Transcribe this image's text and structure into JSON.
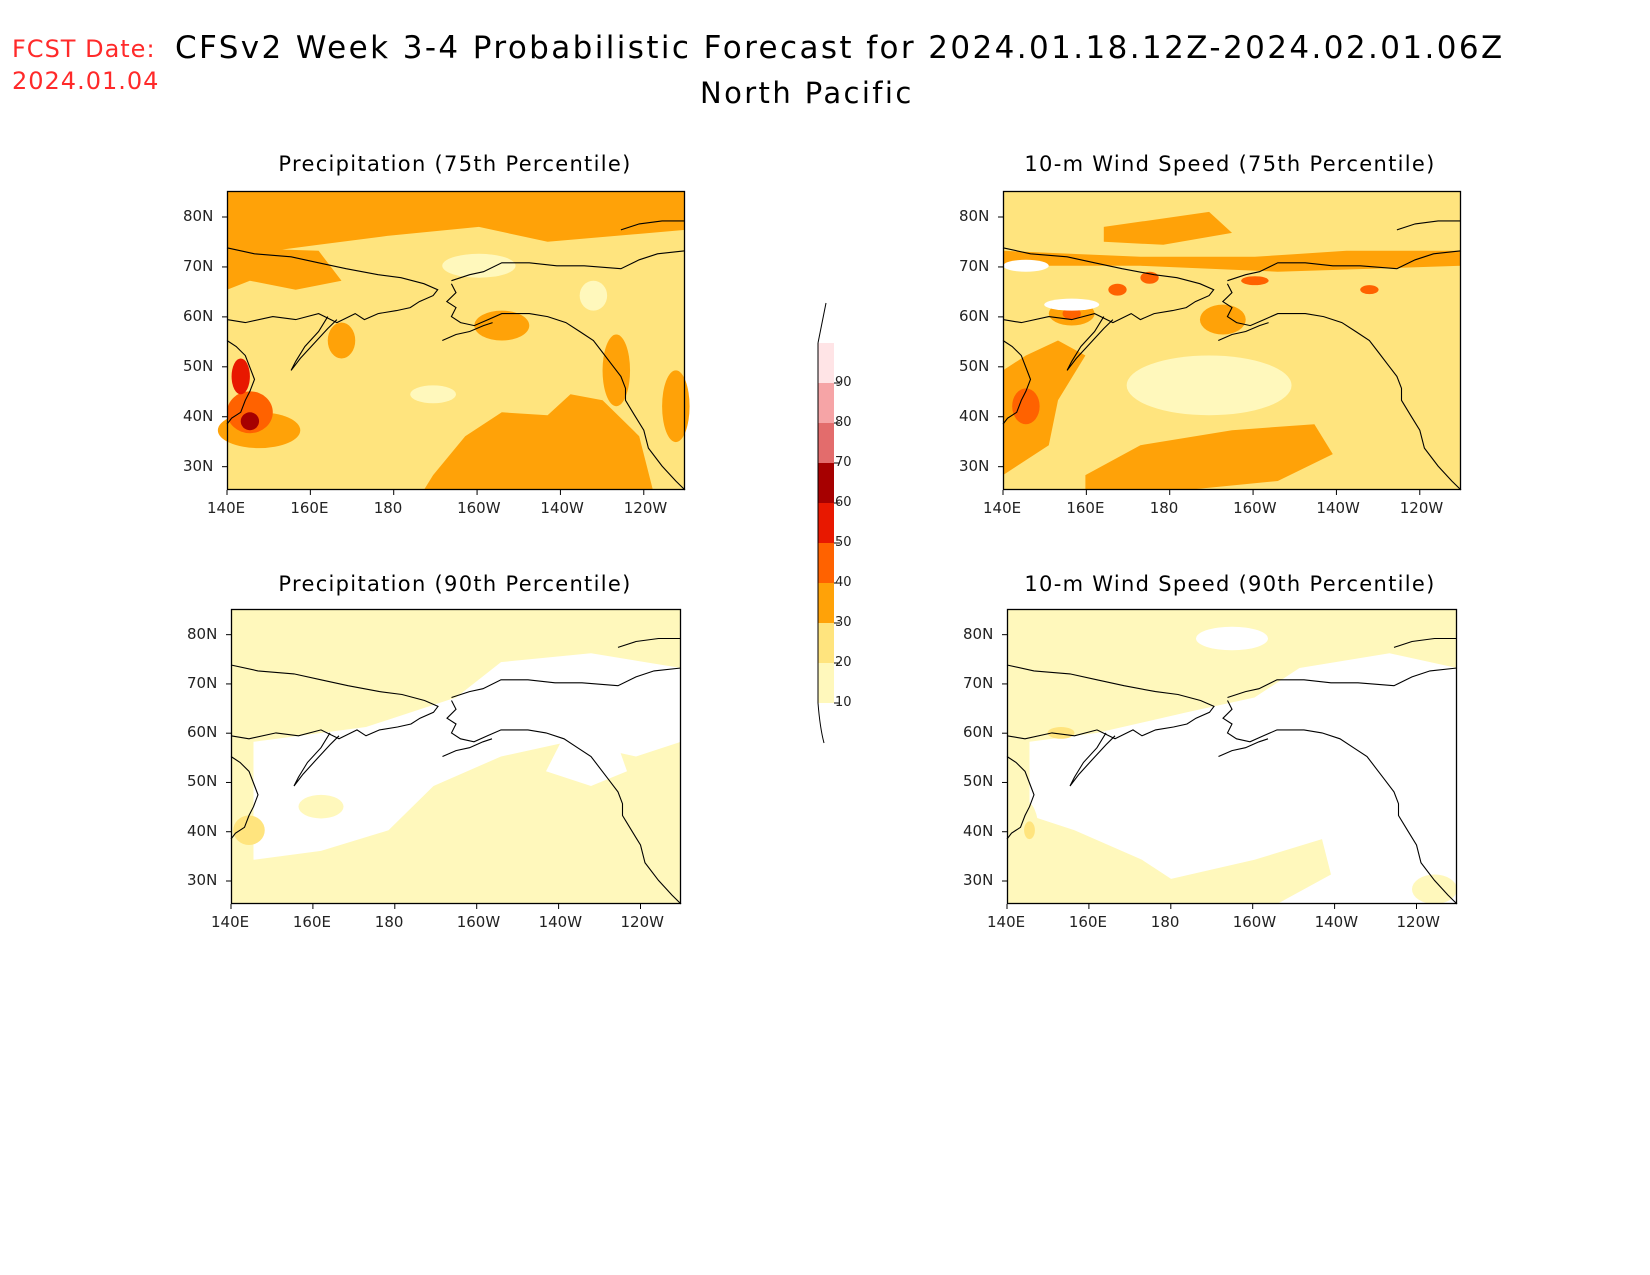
{
  "header": {
    "fcst_label": "FCST Date:",
    "fcst_date": "2024.01.04",
    "title": "CFSv2 Week 3-4 Probabilistic Forecast for 2024.01.18.12Z-2024.02.01.06Z",
    "region": "North Pacific"
  },
  "colors": {
    "c10": "#fff8bc",
    "c20": "#ffe47e",
    "c30": "#ffa208",
    "c40": "#ff6200",
    "c50": "#e81800",
    "c60": "#a60000",
    "c70": "#e36c6c",
    "c80": "#f6a4a6",
    "c90": "#ffe4e6",
    "coast": "#000000"
  },
  "axes": {
    "lat_ticks": [
      "80N",
      "70N",
      "60N",
      "50N",
      "40N",
      "30N"
    ],
    "lon_ticks": [
      "140E",
      "160E",
      "180",
      "160W",
      "140W",
      "120W"
    ]
  },
  "panels": [
    {
      "id": "precip-75",
      "title": "Precipitation (75th Percentile)"
    },
    {
      "id": "wind-75",
      "title": "10-m Wind Speed (75th Percentile)"
    },
    {
      "id": "precip-90",
      "title": "Precipitation (90th Percentile)"
    },
    {
      "id": "wind-90",
      "title": "10-m Wind Speed (90th Percentile)"
    }
  ],
  "colorbar": {
    "levels": [
      "10",
      "20",
      "30",
      "40",
      "50",
      "60",
      "70",
      "80",
      "90"
    ]
  }
}
